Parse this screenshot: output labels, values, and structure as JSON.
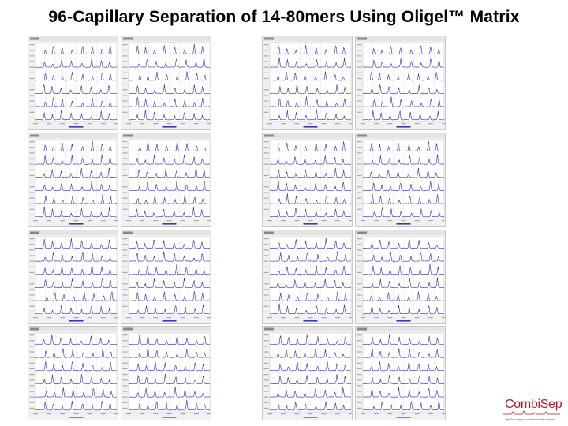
{
  "title": "96-Capillary Separation of 14-80mers Using Oligel™ Matrix",
  "chart_data": {
    "type": "line",
    "panel_count": 16,
    "traces_per_panel": 6,
    "trace_color": "#1a1ab5",
    "panel_background": "#f1f1f1",
    "panel_header_prefix": "Capillary",
    "x_axis_label": "Time (minutes)",
    "grid": true
  },
  "logo": {
    "name": "CombiSep",
    "tagline": "high throughput solutions for life sciences",
    "brand_color": "#b01d22"
  }
}
